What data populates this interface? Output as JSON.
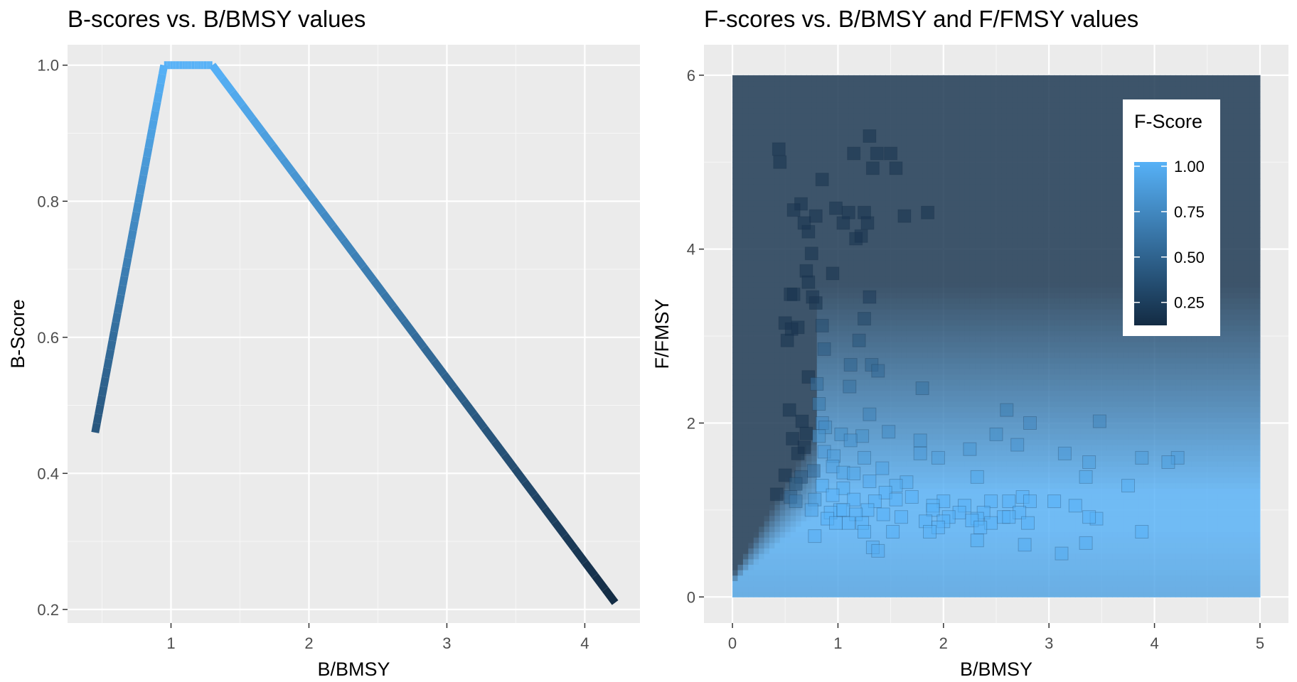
{
  "chart_data": [
    {
      "type": "line",
      "title": "B-scores vs. B/BMSY values",
      "xlabel": "B/BMSY",
      "ylabel": "B-Score",
      "xlim": [
        0.25,
        4.4
      ],
      "ylim": [
        0.18,
        1.03
      ],
      "xticks": [
        1,
        2,
        3,
        4
      ],
      "yticks": [
        0.2,
        0.4,
        0.6,
        0.8,
        1.0
      ],
      "ytick_labels": [
        "0.2",
        "0.4",
        "0.6",
        "0.8",
        "1.0"
      ],
      "x": [
        0.45,
        0.95,
        1.3,
        4.22
      ],
      "y": [
        0.46,
        1.0,
        1.0,
        0.21
      ],
      "color_low": "#132b43",
      "color_high": "#56b1f7",
      "line_width_note": "thick"
    },
    {
      "type": "heatmap",
      "title": "F-scores vs. B/BMSY and F/FMSY values",
      "xlabel": "B/BMSY",
      "ylabel": "F/FMSY",
      "xlim": [
        -0.27,
        5.27
      ],
      "ylim": [
        -0.3,
        6.35
      ],
      "xticks": [
        0,
        1,
        2,
        3,
        4,
        5
      ],
      "yticks": [
        0,
        2,
        4,
        6
      ],
      "legend": {
        "title": "F-Score",
        "position": "top-right",
        "ticks": [
          1.0,
          0.75,
          0.5,
          0.25
        ],
        "tick_labels": [
          "1.00",
          "0.75",
          "0.50",
          "0.25"
        ],
        "color_low": "#132b43",
        "color_high": "#56b1f7"
      },
      "points": [
        [
          0.44,
          5.15
        ],
        [
          0.45,
          5.0
        ],
        [
          1.3,
          5.3
        ],
        [
          1.15,
          5.1
        ],
        [
          1.5,
          5.1
        ],
        [
          1.37,
          5.1
        ],
        [
          1.33,
          4.93
        ],
        [
          1.55,
          4.93
        ],
        [
          0.85,
          4.8
        ],
        [
          0.65,
          4.52
        ],
        [
          0.58,
          4.45
        ],
        [
          0.98,
          4.47
        ],
        [
          1.1,
          4.42
        ],
        [
          1.25,
          4.42
        ],
        [
          0.79,
          4.38
        ],
        [
          1.85,
          4.42
        ],
        [
          1.63,
          4.38
        ],
        [
          1.28,
          4.3
        ],
        [
          0.68,
          4.3
        ],
        [
          0.72,
          4.2
        ],
        [
          1.05,
          4.3
        ],
        [
          1.22,
          4.15
        ],
        [
          1.17,
          4.12
        ],
        [
          0.75,
          3.95
        ],
        [
          0.7,
          3.75
        ],
        [
          0.95,
          3.72
        ],
        [
          0.55,
          3.48
        ],
        [
          0.58,
          3.48
        ],
        [
          0.76,
          3.45
        ],
        [
          0.79,
          3.38
        ],
        [
          0.72,
          3.62
        ],
        [
          1.3,
          3.45
        ],
        [
          1.25,
          3.2
        ],
        [
          0.5,
          3.15
        ],
        [
          0.62,
          3.1
        ],
        [
          0.56,
          3.08
        ],
        [
          0.85,
          3.12
        ],
        [
          0.52,
          2.95
        ],
        [
          1.2,
          2.95
        ],
        [
          0.87,
          2.85
        ],
        [
          1.12,
          2.67
        ],
        [
          1.32,
          2.67
        ],
        [
          1.38,
          2.6
        ],
        [
          0.72,
          2.53
        ],
        [
          0.8,
          2.45
        ],
        [
          1.11,
          2.42
        ],
        [
          1.8,
          2.4
        ],
        [
          0.82,
          2.22
        ],
        [
          0.54,
          2.15
        ],
        [
          2.6,
          2.15
        ],
        [
          1.3,
          2.1
        ],
        [
          0.66,
          2.02
        ],
        [
          0.85,
          2.0
        ],
        [
          3.48,
          2.02
        ],
        [
          2.82,
          2.0
        ],
        [
          0.88,
          1.95
        ],
        [
          0.7,
          1.88
        ],
        [
          1.48,
          1.9
        ],
        [
          0.82,
          1.85
        ],
        [
          1.03,
          1.87
        ],
        [
          1.23,
          1.85
        ],
        [
          2.5,
          1.87
        ],
        [
          0.57,
          1.82
        ],
        [
          1.12,
          1.8
        ],
        [
          1.78,
          1.8
        ],
        [
          2.7,
          1.75
        ],
        [
          0.68,
          1.72
        ],
        [
          0.62,
          1.65
        ],
        [
          2.25,
          1.7
        ],
        [
          1.78,
          1.65
        ],
        [
          1.95,
          1.6
        ],
        [
          3.15,
          1.65
        ],
        [
          3.88,
          1.6
        ],
        [
          4.22,
          1.6
        ],
        [
          0.87,
          1.67
        ],
        [
          0.96,
          1.62
        ],
        [
          1.25,
          1.6
        ],
        [
          4.13,
          1.55
        ],
        [
          3.38,
          1.55
        ],
        [
          1.42,
          1.48
        ],
        [
          0.95,
          1.5
        ],
        [
          0.77,
          1.45
        ],
        [
          1.05,
          1.43
        ],
        [
          1.15,
          1.42
        ],
        [
          0.5,
          1.4
        ],
        [
          0.65,
          1.38
        ],
        [
          2.32,
          1.38
        ],
        [
          3.35,
          1.38
        ],
        [
          1.3,
          1.33
        ],
        [
          1.65,
          1.32
        ],
        [
          0.6,
          1.3
        ],
        [
          3.75,
          1.28
        ],
        [
          0.85,
          1.28
        ],
        [
          1.55,
          1.28
        ],
        [
          1.05,
          1.25
        ],
        [
          1.45,
          1.2
        ],
        [
          0.42,
          1.18
        ],
        [
          0.55,
          1.15
        ],
        [
          0.95,
          1.17
        ],
        [
          1.7,
          1.15
        ],
        [
          2.75,
          1.15
        ],
        [
          1.15,
          1.12
        ],
        [
          2.62,
          1.1
        ],
        [
          1.35,
          1.1
        ],
        [
          0.78,
          1.12
        ],
        [
          2.45,
          1.1
        ],
        [
          2.0,
          1.1
        ],
        [
          2.82,
          1.1
        ],
        [
          3.05,
          1.1
        ],
        [
          1.55,
          1.12
        ],
        [
          3.25,
          1.05
        ],
        [
          0.6,
          1.1
        ],
        [
          1.9,
          1.05
        ],
        [
          2.2,
          1.05
        ],
        [
          0.75,
          1.0
        ],
        [
          1.02,
          1.0
        ],
        [
          0.93,
          0.97
        ],
        [
          1.05,
          1.0
        ],
        [
          1.28,
          1.0
        ],
        [
          1.9,
          1.0
        ],
        [
          2.15,
          0.97
        ],
        [
          2.38,
          0.97
        ],
        [
          2.72,
          0.97
        ],
        [
          1.17,
          0.95
        ],
        [
          1.43,
          0.95
        ],
        [
          1.6,
          0.92
        ],
        [
          2.05,
          0.92
        ],
        [
          2.32,
          0.9
        ],
        [
          3.45,
          0.9
        ],
        [
          3.38,
          0.92
        ],
        [
          2.57,
          0.92
        ],
        [
          2.62,
          0.92
        ],
        [
          0.9,
          0.9
        ],
        [
          2.27,
          0.88
        ],
        [
          1.83,
          0.87
        ],
        [
          2.0,
          0.87
        ],
        [
          2.45,
          0.85
        ],
        [
          2.8,
          0.85
        ],
        [
          1.1,
          0.85
        ],
        [
          1.23,
          0.85
        ],
        [
          0.98,
          0.85
        ],
        [
          2.35,
          0.8
        ],
        [
          1.95,
          0.8
        ],
        [
          1.52,
          0.75
        ],
        [
          1.87,
          0.75
        ],
        [
          3.88,
          0.75
        ],
        [
          1.25,
          0.75
        ],
        [
          0.78,
          0.7
        ],
        [
          2.32,
          0.65
        ],
        [
          3.35,
          0.62
        ],
        [
          2.77,
          0.6
        ],
        [
          1.33,
          0.57
        ],
        [
          1.38,
          0.53
        ],
        [
          3.12,
          0.5
        ]
      ]
    }
  ]
}
